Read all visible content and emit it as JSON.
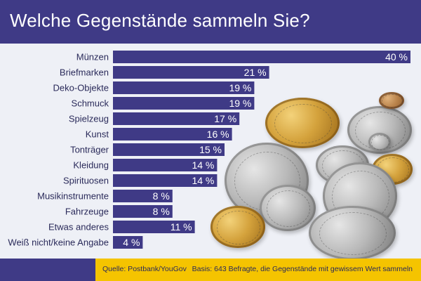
{
  "title": "Welche Gegenstände sammeln Sie?",
  "footer": {
    "source": "Quelle: Postbank/YouGov",
    "basis": "Basis: 643 Befragte, die Gegenstände mit gewissem Wert sammeln"
  },
  "colors": {
    "bar": "#3f3a86",
    "header": "#3f3a86",
    "footer": "#f5c400",
    "plot_background": "#eef0f6"
  },
  "chart_data": {
    "type": "bar",
    "orientation": "horizontal",
    "title": "Welche Gegenstände sammeln Sie?",
    "categories": [
      "Münzen",
      "Briefmarken",
      "Deko-Objekte",
      "Schmuck",
      "Spielzeug",
      "Kunst",
      "Tonträger",
      "Kleidung",
      "Spirituosen",
      "Musikinstrumente",
      "Fahrzeuge",
      "Etwas anderes",
      "Weiß nicht/keine Angabe"
    ],
    "values": [
      40,
      21,
      19,
      19,
      17,
      16,
      15,
      14,
      14,
      8,
      8,
      11,
      4
    ],
    "value_labels": [
      "40 %",
      "21 %",
      "19 %",
      "19 %",
      "17 %",
      "16 %",
      "15 %",
      "14 %",
      "14 %",
      "8 %",
      "8 %",
      "11 %",
      "4 %"
    ],
    "unit": "%",
    "xlim": [
      0,
      40
    ],
    "grid": false,
    "legend": "none"
  }
}
